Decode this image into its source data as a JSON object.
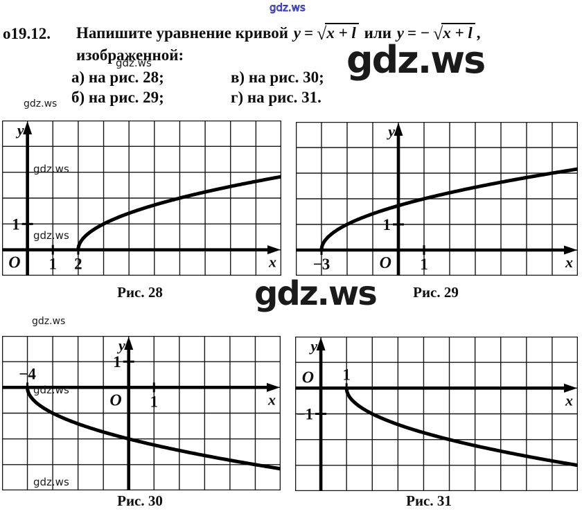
{
  "problem": {
    "number": "о19.12.",
    "line1_prefix": "Напишите уравнение кривой",
    "eq1": {
      "lhs": "y",
      "rel": "=",
      "radical": "√",
      "radicand": "x + l"
    },
    "conjunction": "или",
    "eq2": {
      "lhs": "y",
      "rel": "= −",
      "radical": "√",
      "radicand": "x + l"
    },
    "line1_suffix": ",",
    "line2": "изображенной:",
    "items": [
      {
        "label": "а) на рис. 28;"
      },
      {
        "label": "в) на рис. 30;"
      },
      {
        "label": "б) на рис. 29;"
      },
      {
        "label": "г) на рис. 31."
      }
    ]
  },
  "watermarks": [
    {
      "text": "gdz.ws"
    },
    {
      "text": "gdz.ws"
    },
    {
      "text": "gdz.ws"
    },
    {
      "text": "gdz.ws"
    },
    {
      "text": "gdz.ws"
    },
    {
      "text": "gdz.ws"
    },
    {
      "text": "gdz.ws"
    },
    {
      "text": "gdz.ws"
    },
    {
      "text": "gdz.ws"
    },
    {
      "text": "gdz.ws"
    }
  ],
  "chart_data": [
    {
      "type": "line",
      "figure": "Рис. 28",
      "equation": "y = √(x − 2)",
      "x_range": [
        -1,
        10
      ],
      "y_range": [
        -1,
        5
      ],
      "grid": true,
      "x_axis_label": "x",
      "y_axis_label": "y",
      "origin_label": "O",
      "origin_side": "below",
      "x_ticks": [
        {
          "v": 1,
          "label": "1",
          "side": "below"
        },
        {
          "v": 2,
          "label": "2",
          "side": "below"
        }
      ],
      "y_ticks": [
        {
          "v": 1,
          "label": "1"
        }
      ],
      "curve": {
        "fn": "sqrt",
        "sign": 1,
        "root_x": 2,
        "x_end": 10
      },
      "key_points": [
        [
          2,
          0
        ],
        [
          3,
          1
        ],
        [
          6,
          2
        ],
        [
          10,
          2.83
        ]
      ]
    },
    {
      "type": "line",
      "figure": "Рис. 29",
      "equation": "y = √(x + 3)",
      "x_range": [
        -4,
        7
      ],
      "y_range": [
        -1,
        5
      ],
      "grid": true,
      "x_axis_label": "x",
      "y_axis_label": "y",
      "origin_label": "O",
      "origin_side": "below",
      "x_ticks": [
        {
          "v": -3,
          "label": "−3",
          "side": "below"
        },
        {
          "v": 1,
          "label": "1",
          "side": "below"
        }
      ],
      "y_ticks": [
        {
          "v": 1,
          "label": "1"
        }
      ],
      "curve": {
        "fn": "sqrt",
        "sign": 1,
        "root_x": -3,
        "x_end": 7
      },
      "key_points": [
        [
          -3,
          0
        ],
        [
          -2,
          1
        ],
        [
          1,
          2
        ],
        [
          6,
          3
        ]
      ]
    },
    {
      "type": "line",
      "figure": "Рис. 30",
      "equation": "y = −√(x + 4)",
      "x_range": [
        -5,
        6
      ],
      "y_range": [
        -4,
        2
      ],
      "grid": true,
      "x_axis_label": "x",
      "y_axis_label": "y",
      "origin_label": "O",
      "origin_side": "below",
      "x_ticks": [
        {
          "v": -4,
          "label": "−4",
          "side": "above"
        },
        {
          "v": 1,
          "label": "1",
          "side": "below"
        }
      ],
      "y_ticks": [
        {
          "v": 1,
          "label": "1"
        }
      ],
      "curve": {
        "fn": "sqrt",
        "sign": -1,
        "root_x": -4,
        "x_end": 6
      },
      "key_points": [
        [
          -4,
          0
        ],
        [
          -3,
          -1
        ],
        [
          0,
          -2
        ],
        [
          5,
          -3
        ]
      ]
    },
    {
      "type": "line",
      "figure": "Рис. 31",
      "equation": "y = −√(x − 1)",
      "x_range": [
        -1,
        10
      ],
      "y_range": [
        -4,
        2
      ],
      "grid": true,
      "x_axis_label": "x",
      "y_axis_label": "y",
      "origin_label": "O",
      "origin_side": "above",
      "x_ticks": [
        {
          "v": 1,
          "label": "1",
          "side": "above"
        }
      ],
      "y_ticks": [
        {
          "v": -1,
          "label": "−1"
        }
      ],
      "curve": {
        "fn": "sqrt",
        "sign": -1,
        "root_x": 1,
        "x_end": 10
      },
      "key_points": [
        [
          1,
          0
        ],
        [
          2,
          -1
        ],
        [
          5,
          -2
        ],
        [
          10,
          -3
        ]
      ]
    }
  ]
}
